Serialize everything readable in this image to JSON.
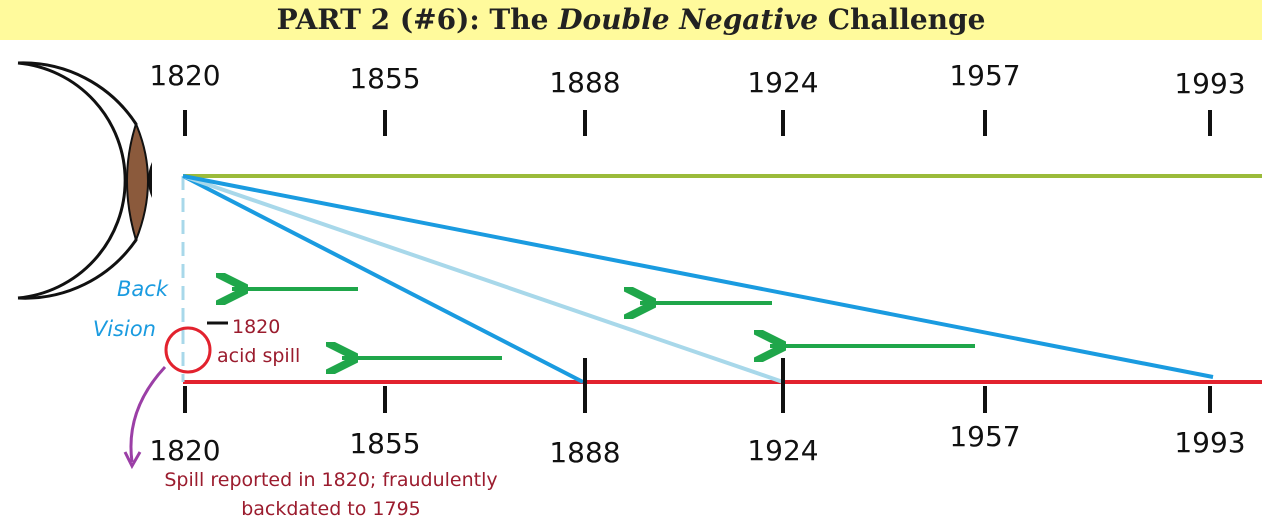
{
  "header": {
    "title": {
      "before": "PART 2 (#6): The ",
      "emphasis": "Double Negative",
      "after": " Challenge"
    }
  },
  "top_timeline": {
    "labels": [
      1820,
      1855,
      1888,
      1924,
      1957,
      1993
    ]
  },
  "bottom_timeline": {
    "labels": [
      1820,
      1855,
      1888,
      1924,
      1957,
      1993
    ]
  },
  "annotations": {
    "back_vision": [
      "Back",
      "Vision"
    ],
    "spill": [
      "1820",
      "acid spill"
    ],
    "note": [
      "Spill reported in 1820; fraudulently",
      "backdated to 1795"
    ]
  }
}
